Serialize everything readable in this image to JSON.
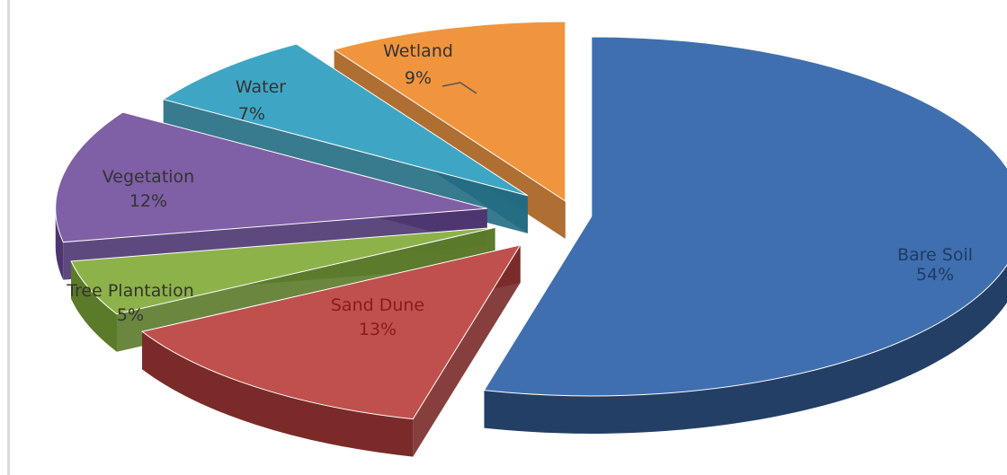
{
  "chart_data": {
    "type": "pie",
    "style": "3d-exploded",
    "title": "",
    "slices": [
      {
        "label": "Bare Soil",
        "value": 54,
        "value_label": "54%",
        "color": "#3F6FAE",
        "side_color": "#233F66",
        "text_color": "#1F3A66"
      },
      {
        "label": "Sand Dune",
        "value": 13,
        "value_label": "13%",
        "color": "#C0504D",
        "side_color": "#7A2A28",
        "text_color": "#8A1A1A"
      },
      {
        "label": "Tree Plantation",
        "value": 5,
        "value_label": "5%",
        "color": "#8DB24A",
        "side_color": "#5B7A2A",
        "text_color": "#333333"
      },
      {
        "label": "Vegetation",
        "value": 12,
        "value_label": "12%",
        "color": "#7F5FA6",
        "side_color": "#4D3570",
        "text_color": "#333333"
      },
      {
        "label": "Water",
        "value": 7,
        "value_label": "7%",
        "color": "#3EA6C4",
        "side_color": "#226C82",
        "text_color": "#333333"
      },
      {
        "label": "Wetland",
        "value": 9,
        "value_label": "9%",
        "color": "#F0953E",
        "side_color": "#A65E1C",
        "text_color": "#333333"
      }
    ]
  }
}
